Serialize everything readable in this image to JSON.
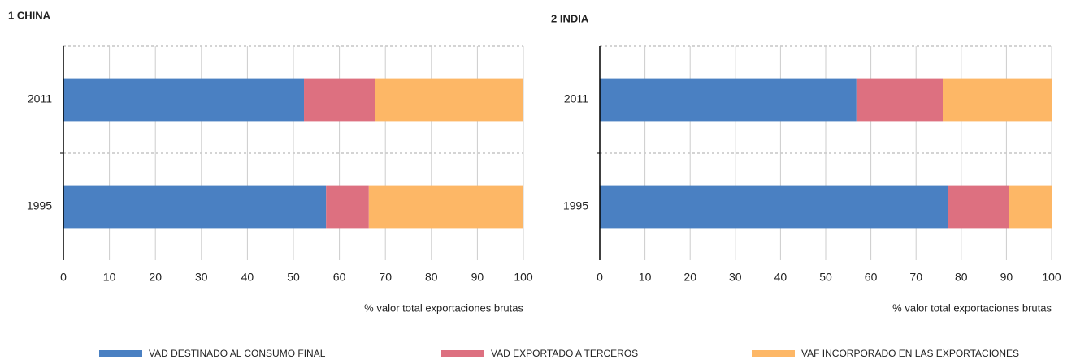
{
  "chart_data": [
    {
      "type": "stacked_barh",
      "title": "1  CHINA",
      "categories": [
        "2011",
        "1995"
      ],
      "series": [
        {
          "name": "VAD DESTINADO AL CONSUMO FINAL",
          "color": "#4a80c2",
          "values": [
            52.3,
            57.1
          ]
        },
        {
          "name": "VAD EXPORTADO A TERCEROS",
          "color": "#dd7080",
          "values": [
            15.5,
            9.3
          ]
        },
        {
          "name": "VAF INCORPORADO EN LAS EXPORTACIONES",
          "color": "#fdb766",
          "values": [
            32.2,
            33.6
          ]
        }
      ],
      "xlim": [
        0,
        100
      ],
      "xticks": [
        0,
        10,
        20,
        30,
        40,
        50,
        60,
        70,
        80,
        90,
        100
      ],
      "x_label": "% valor total exportaciones brutas",
      "grid": true
    },
    {
      "type": "stacked_barh",
      "title": "2  INDIA",
      "categories": [
        "2011",
        "1995"
      ],
      "series": [
        {
          "name": "VAD DESTINADO AL CONSUMO FINAL",
          "color": "#4a80c2",
          "values": [
            56.8,
            77.0
          ]
        },
        {
          "name": "VAD EXPORTADO A TERCEROS",
          "color": "#dd7080",
          "values": [
            19.1,
            13.6
          ]
        },
        {
          "name": "VAF INCORPORADO EN LAS EXPORTACIONES",
          "color": "#fdb766",
          "values": [
            24.1,
            9.4
          ]
        }
      ],
      "xlim": [
        0,
        100
      ],
      "xticks": [
        0,
        10,
        20,
        30,
        40,
        50,
        60,
        70,
        80,
        90,
        100
      ],
      "x_label": "% valor total exportaciones brutas",
      "grid": true
    }
  ]
}
